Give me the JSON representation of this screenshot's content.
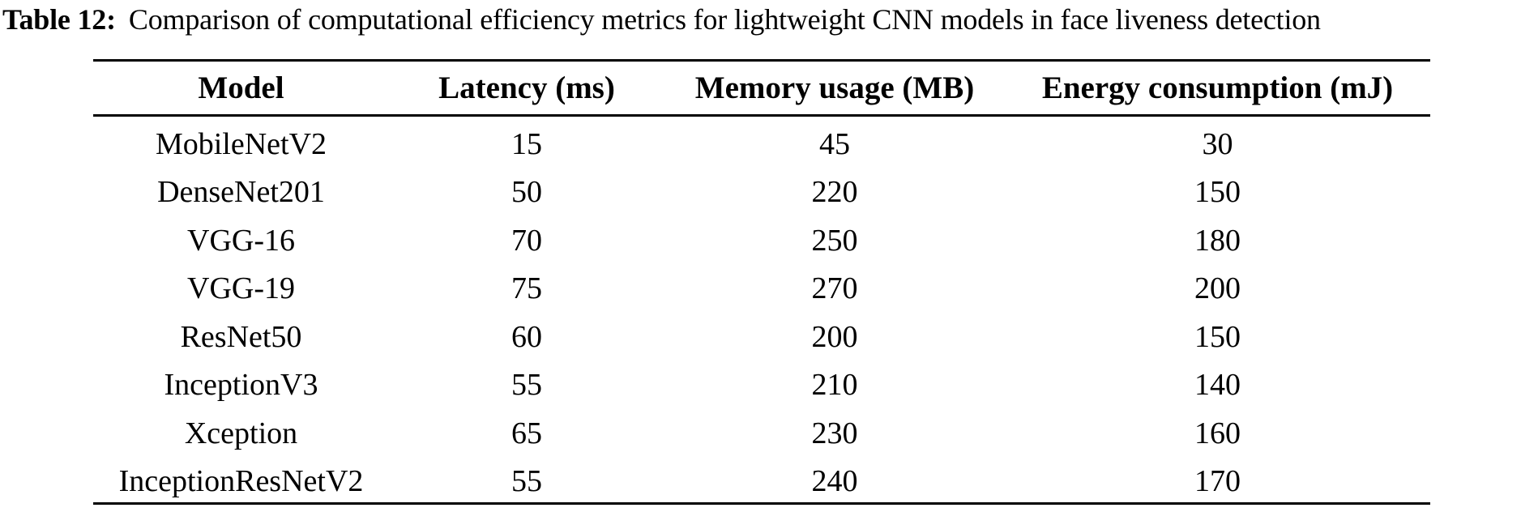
{
  "caption": {
    "label": "Table 12:",
    "text": "Comparison of computational efficiency metrics for lightweight CNN models in face liveness detection"
  },
  "table": {
    "headers": [
      "Model",
      "Latency (ms)",
      "Memory usage (MB)",
      "Energy consumption (mJ)"
    ],
    "rows": [
      [
        "MobileNetV2",
        "15",
        "45",
        "30"
      ],
      [
        "DenseNet201",
        "50",
        "220",
        "150"
      ],
      [
        "VGG-16",
        "70",
        "250",
        "180"
      ],
      [
        "VGG-19",
        "75",
        "270",
        "200"
      ],
      [
        "ResNet50",
        "60",
        "200",
        "150"
      ],
      [
        "InceptionV3",
        "55",
        "210",
        "140"
      ],
      [
        "Xception",
        "65",
        "230",
        "160"
      ],
      [
        "InceptionResNetV2",
        "55",
        "240",
        "170"
      ]
    ]
  },
  "colors": {
    "text": "#000000",
    "background": "#ffffff",
    "rule": "#000000"
  }
}
